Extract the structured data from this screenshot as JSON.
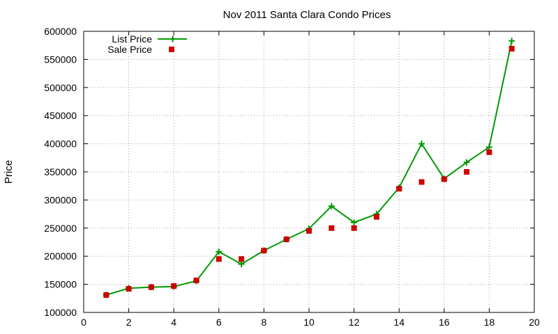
{
  "chart_data": {
    "type": "line",
    "title": "Nov 2011 Santa Clara Condo Prices",
    "xlabel": "",
    "ylabel": "Price",
    "xlim": [
      0,
      20
    ],
    "ylim": [
      100000,
      600000
    ],
    "x_ticks": [
      0,
      2,
      4,
      6,
      8,
      10,
      12,
      14,
      16,
      18,
      20
    ],
    "y_ticks": [
      100000,
      150000,
      200000,
      250000,
      300000,
      350000,
      400000,
      450000,
      500000,
      550000,
      600000
    ],
    "grid": true,
    "legend_position": "top-left",
    "series": [
      {
        "name": "List Price",
        "style": "line-with-plus-markers",
        "color": "#009900",
        "x": [
          1,
          2,
          3,
          4,
          5,
          6,
          7,
          8,
          9,
          10,
          11,
          12,
          13,
          14,
          15,
          16,
          17,
          18,
          19
        ],
        "values": [
          131000,
          143000,
          145000,
          146000,
          156000,
          208000,
          186000,
          210000,
          230000,
          249000,
          289000,
          260000,
          275000,
          322000,
          400000,
          338000,
          367000,
          394000,
          583000
        ]
      },
      {
        "name": "Sale Price",
        "style": "square-markers",
        "color": "#cc0000",
        "x": [
          1,
          2,
          3,
          4,
          5,
          6,
          7,
          8,
          9,
          10,
          11,
          12,
          13,
          14,
          15,
          16,
          17,
          18,
          19
        ],
        "values": [
          131000,
          142000,
          145000,
          147000,
          157000,
          195000,
          195000,
          210000,
          230000,
          245000,
          250000,
          250000,
          270000,
          320000,
          332000,
          337000,
          350000,
          385000,
          569000
        ]
      }
    ]
  }
}
